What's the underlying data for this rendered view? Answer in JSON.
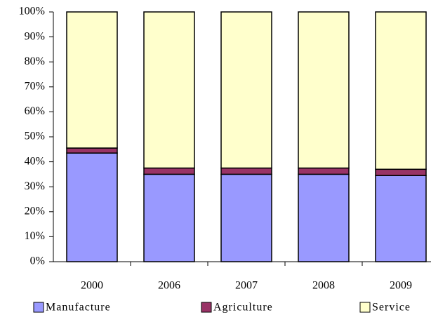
{
  "chart_data": {
    "type": "stacked_bar_percent",
    "categories": [
      "2000",
      "2006",
      "2007",
      "2008",
      "2009"
    ],
    "series": [
      {
        "name": "Manufacture",
        "color": "#9999ff",
        "values": [
          43.5,
          35,
          35,
          35,
          34.5
        ]
      },
      {
        "name": "Agriculture",
        "color": "#993366",
        "values": [
          2,
          2.5,
          2.5,
          2.5,
          2.5
        ]
      },
      {
        "name": "Service",
        "color": "#ffffcc",
        "values": [
          54.5,
          62.5,
          62.5,
          62.5,
          63
        ]
      }
    ],
    "ylim": [
      0,
      100
    ],
    "yticks": [
      {
        "value": 0,
        "label": "0%"
      },
      {
        "value": 10,
        "label": "10%"
      },
      {
        "value": 20,
        "label": "20%"
      },
      {
        "value": 30,
        "label": "30%"
      },
      {
        "value": 40,
        "label": "40%"
      },
      {
        "value": 50,
        "label": "50%"
      },
      {
        "value": 60,
        "label": "60%"
      },
      {
        "value": 70,
        "label": "70%"
      },
      {
        "value": 80,
        "label": "80%"
      },
      {
        "value": 90,
        "label": "90%"
      },
      {
        "value": 100,
        "label": "100%"
      }
    ],
    "grid": false,
    "legend": "bottom"
  }
}
